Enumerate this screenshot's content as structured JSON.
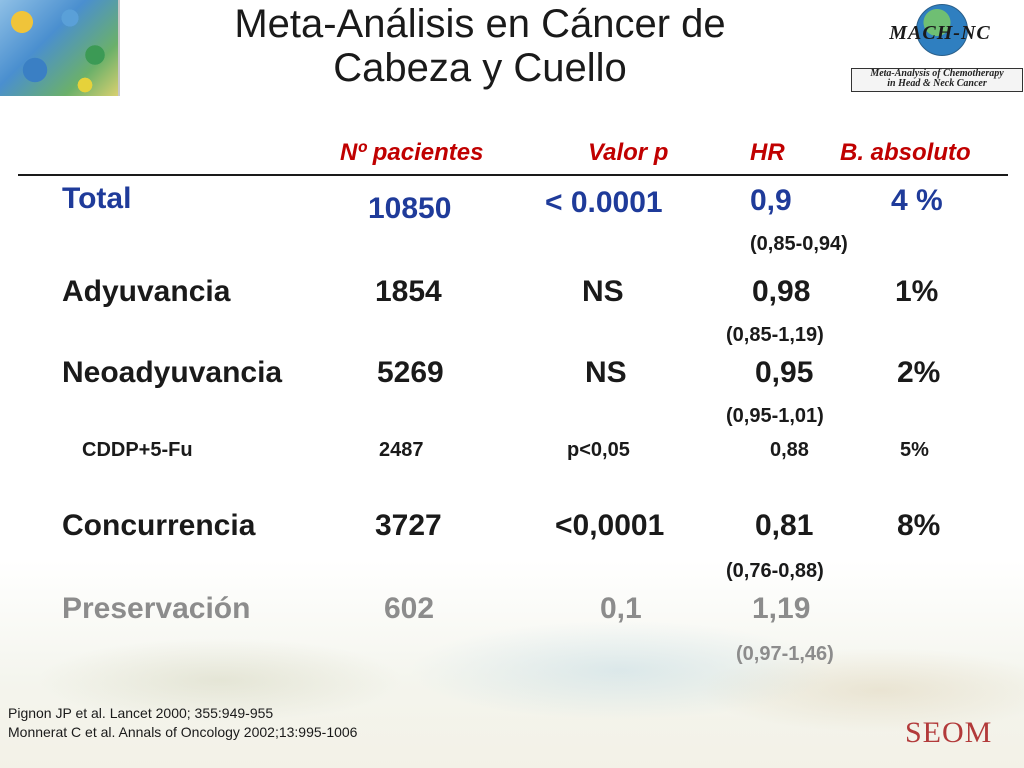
{
  "title": [
    "Meta-Análisis en Cáncer de",
    "Cabeza y Cuello"
  ],
  "logo": {
    "mark": "MACH-NC",
    "caption": [
      "Meta-Analysis of Chemotherapy",
      "in Head & Neck Cancer"
    ]
  },
  "table": {
    "headers": [
      "Nº pacientes",
      "Valor p",
      "HR",
      "B. absoluto"
    ],
    "rows": [
      {
        "label": "Total",
        "patients": "10850",
        "p": "< 0.0001",
        "hr": "0,9",
        "ci": "(0,85-0,94)",
        "benefit": "4 %"
      },
      {
        "label": "Adyuvancia",
        "patients": "1854",
        "p": "NS",
        "hr": "0,98",
        "ci": "(0,85-1,19)",
        "benefit": "1%"
      },
      {
        "label": "Neoadyuvancia",
        "patients": "5269",
        "p": "NS",
        "hr": "0,95",
        "ci": "(0,95-1,01)",
        "benefit": "2%"
      },
      {
        "label": "CDDP+5-Fu",
        "patients": "2487",
        "p": "p<0,05",
        "hr": "0,88",
        "ci": "",
        "benefit": "5%"
      },
      {
        "label": "Concurrencia",
        "patients": "3727",
        "p": "<0,0001",
        "hr": "0,81",
        "ci": "(0,76-0,88)",
        "benefit": "8%"
      },
      {
        "label": "Preservación",
        "patients": "602",
        "p": "0,1",
        "hr": "1,19",
        "ci": "(0,97-1,46)",
        "benefit": ""
      }
    ]
  },
  "references": [
    "Pignon JP et al. Lancet 2000; 355:949-955",
    "Monnerat C et al. Annals of Oncology 2002;13:995-1006"
  ],
  "footer_logo": "SEOM",
  "colors": {
    "header": "#c00000",
    "total_row": "#1f3b9a",
    "muted_row": "#8c8c8c"
  }
}
